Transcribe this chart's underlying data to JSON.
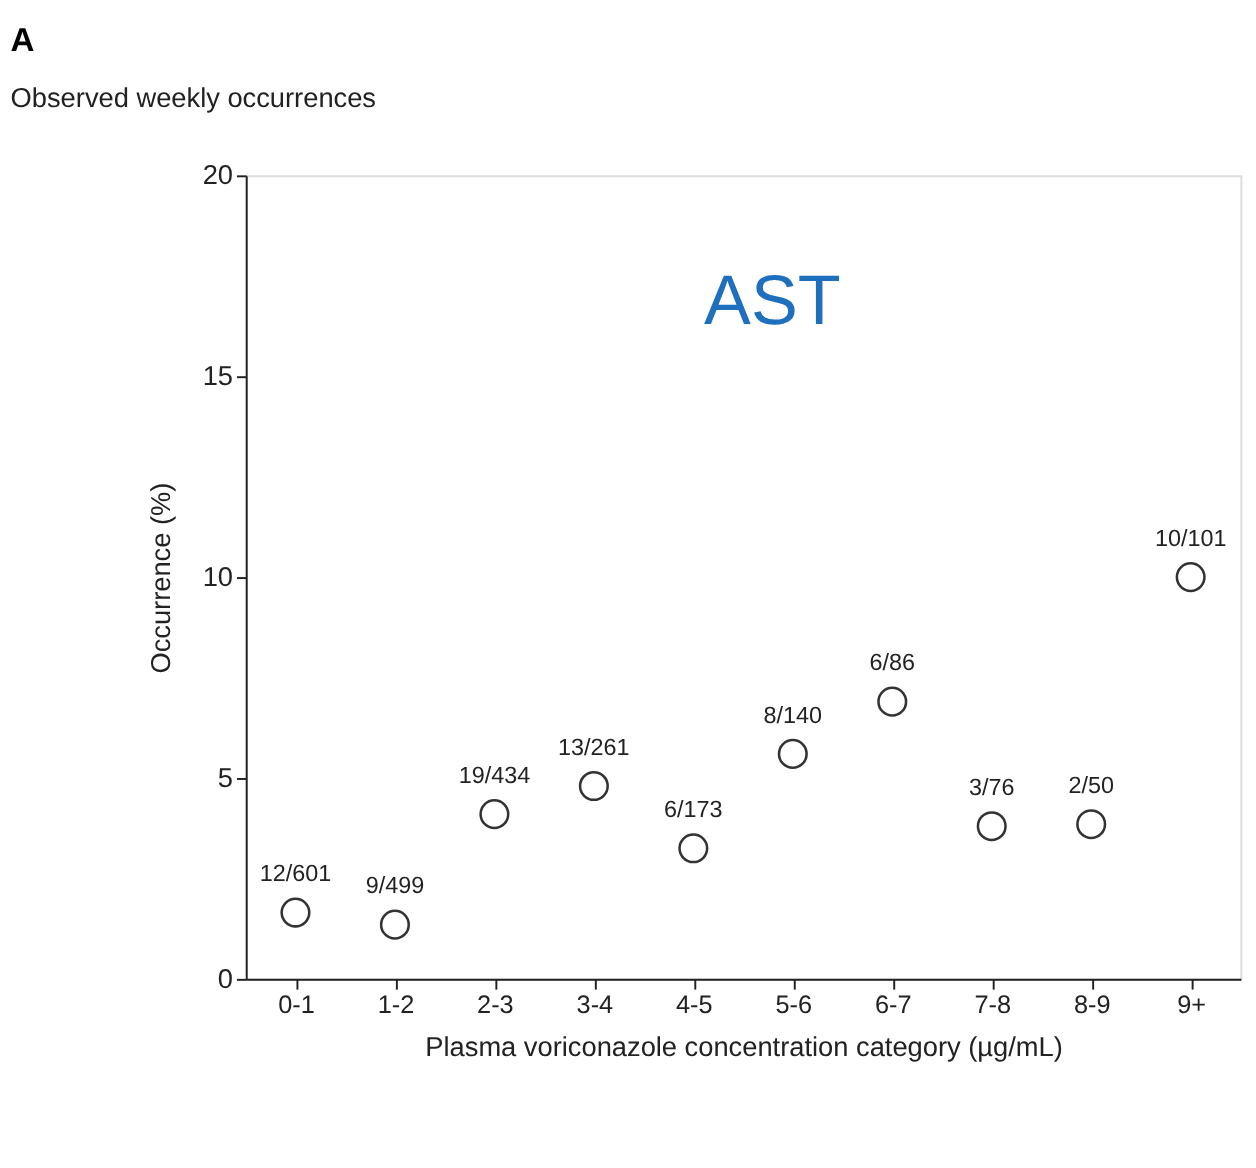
{
  "chart_data": {
    "type": "scatter",
    "title": "A",
    "subtitle": "Observed weekly occurrences",
    "xlabel": "Plasma voriconazole concentration category (µg/mL)",
    "ylabel": "Occurrence (%)",
    "categories": [
      "0-1",
      "1-2",
      "2-3",
      "3-4",
      "4-5",
      "5-6",
      "6-7",
      "7-8",
      "8-9",
      "9+"
    ],
    "values": [
      1.65,
      1.35,
      4.1,
      4.8,
      3.25,
      5.6,
      6.9,
      3.8,
      3.85,
      10.0
    ],
    "value_labels": [
      "12/601",
      "9/499",
      "19/434",
      "13/261",
      "6/173",
      "8/140",
      "6/86",
      "3/76",
      "2/50",
      "10/101"
    ],
    "color": "#333333",
    "marker": "circle",
    "ylim": [
      0,
      20
    ],
    "yticks": [
      0,
      5,
      10,
      15,
      20
    ],
    "grid": false,
    "annotations": [
      "AST"
    ]
  }
}
